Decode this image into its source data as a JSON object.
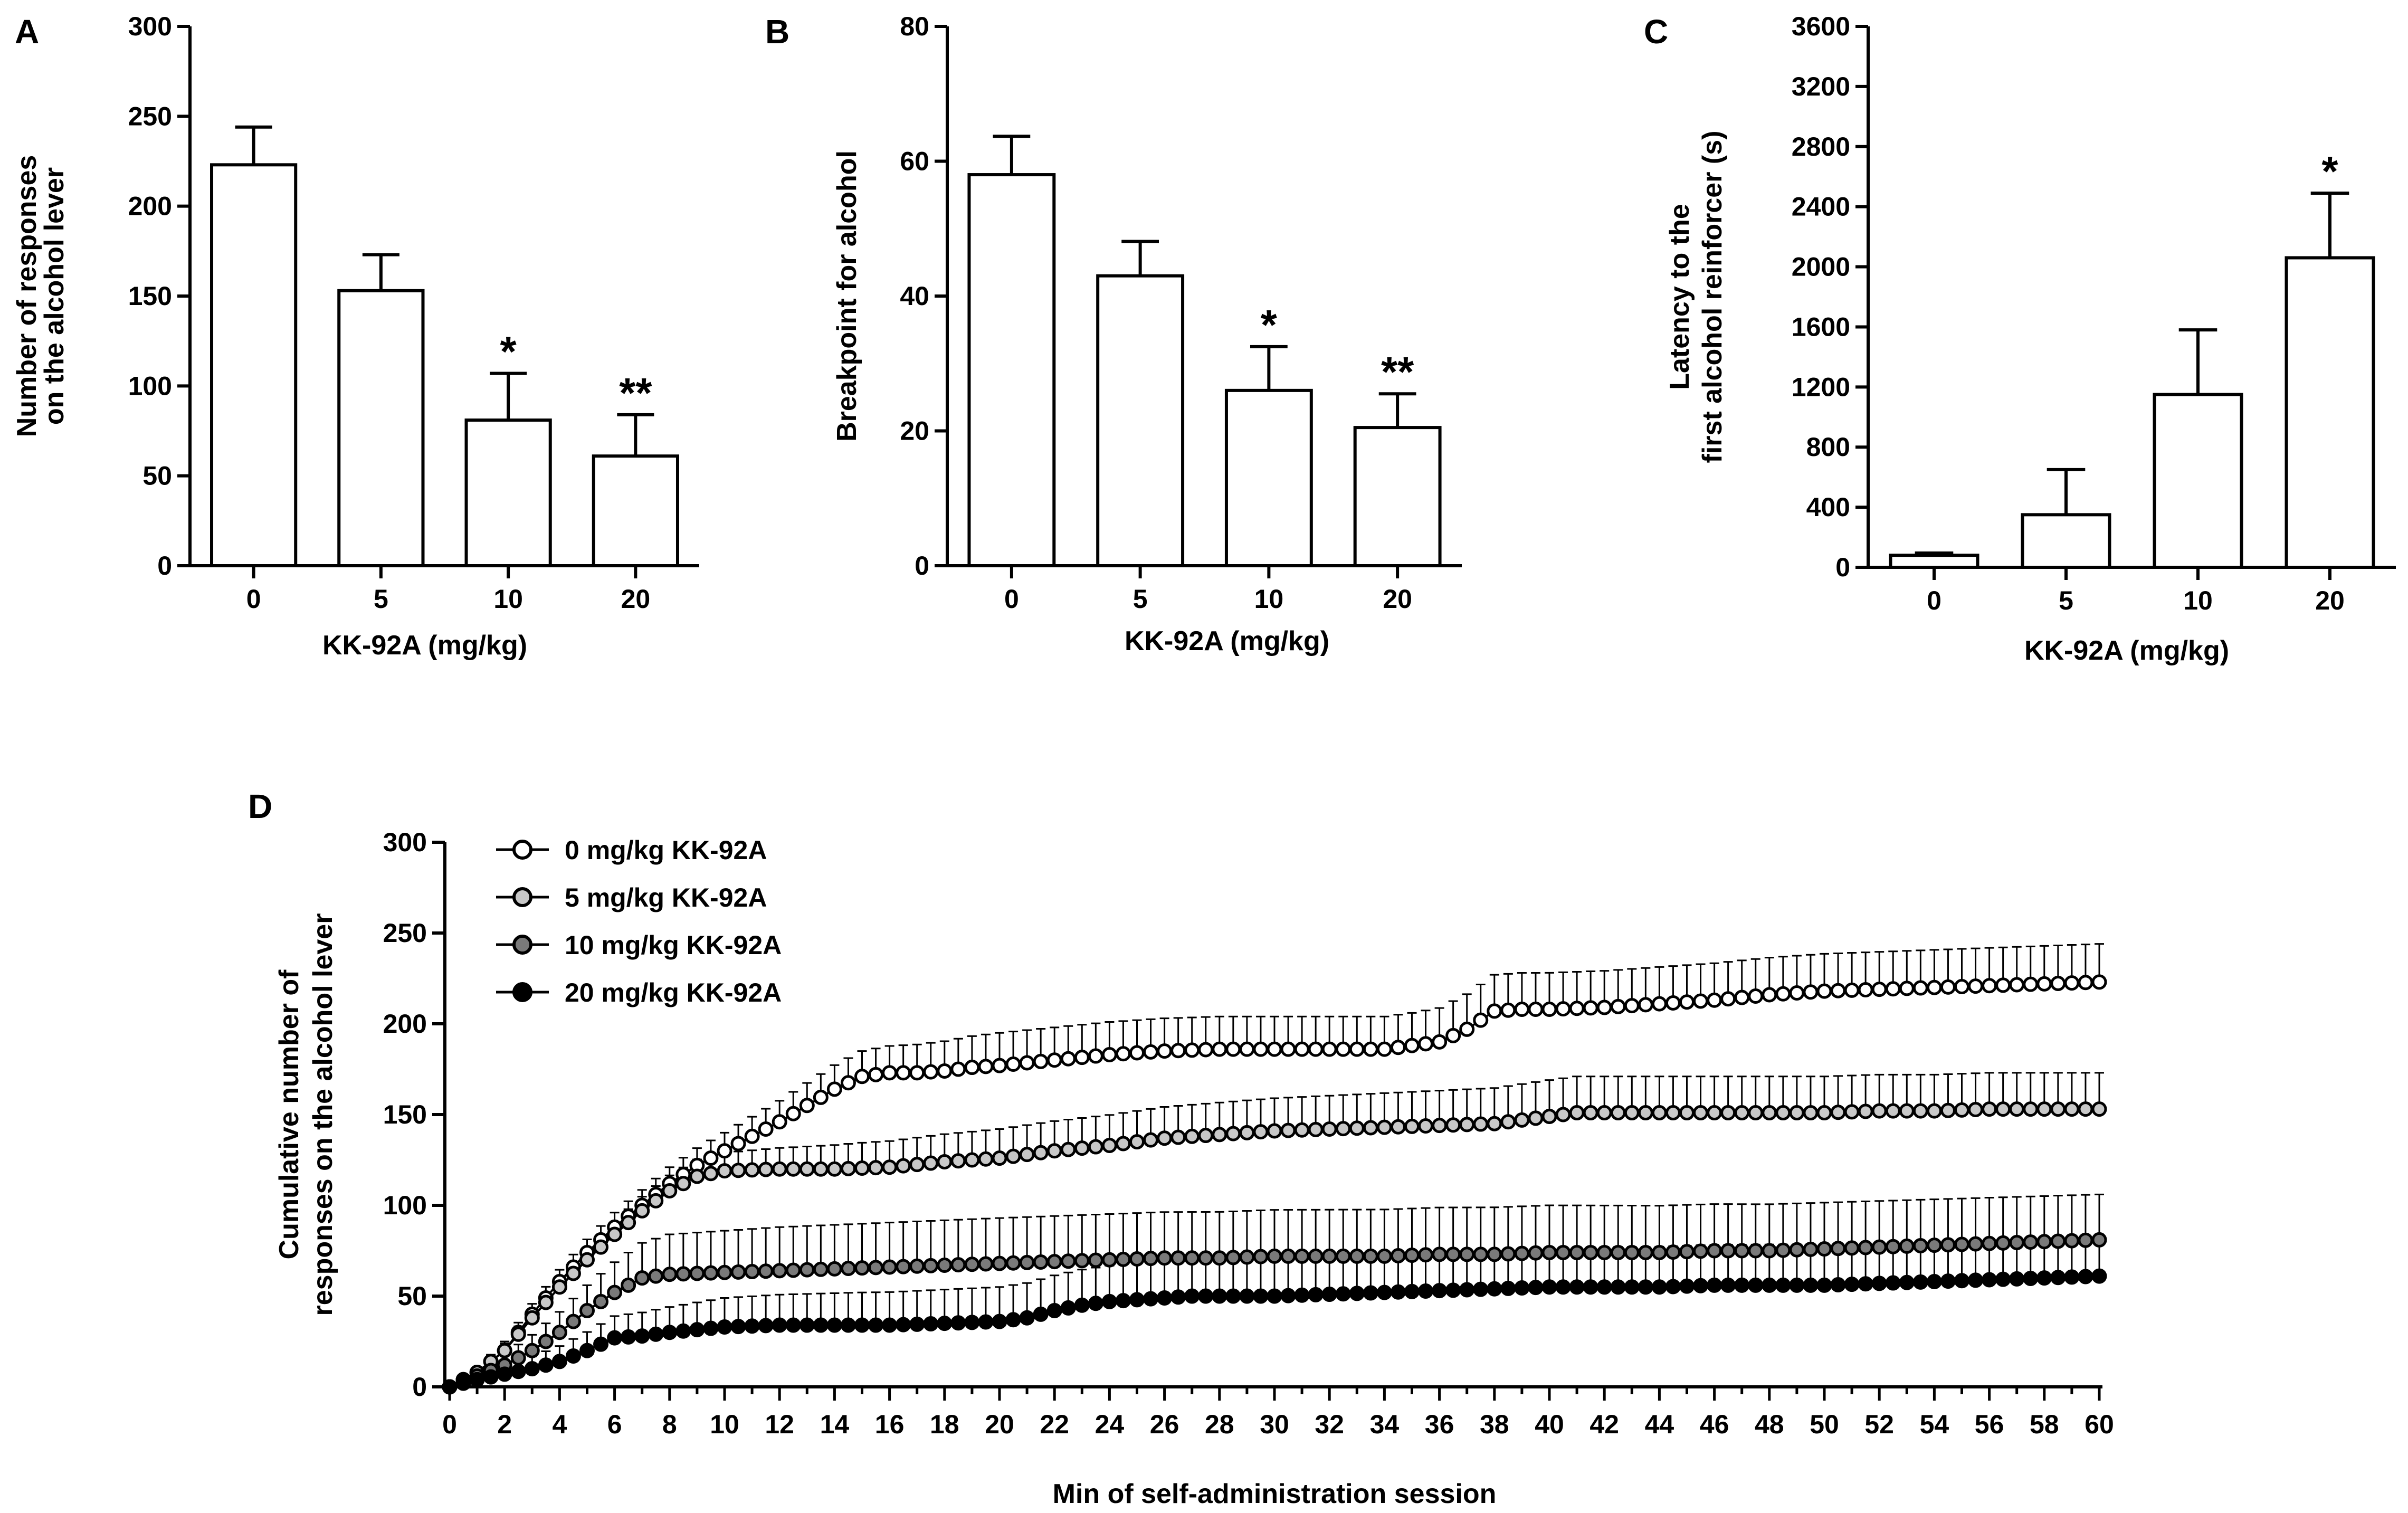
{
  "chart_data": [
    {
      "panel": "A",
      "type": "bar",
      "categories": [
        "0",
        "5",
        "10",
        "20"
      ],
      "values": [
        223,
        153,
        81,
        61
      ],
      "errors": [
        21,
        20,
        26,
        23
      ],
      "significance": [
        "",
        "",
        "*",
        "**"
      ],
      "xlabel": "KK-92A (mg/kg)",
      "ylabel_lines": [
        "Number of responses",
        "on the alcohol lever"
      ],
      "ylim": [
        0,
        300
      ],
      "yticks": [
        0,
        50,
        100,
        150,
        200,
        250,
        300
      ],
      "ytick_labels": [
        "0",
        "50",
        "100",
        "150",
        "200",
        "250",
        "300"
      ]
    },
    {
      "panel": "B",
      "type": "bar",
      "categories": [
        "0",
        "5",
        "10",
        "20"
      ],
      "values": [
        58,
        43,
        26,
        20.5
      ],
      "errors": [
        5.7,
        5.1,
        6.5,
        5
      ],
      "significance": [
        "",
        "",
        "*",
        "**"
      ],
      "xlabel": "KK-92A (mg/kg)",
      "ylabel_lines": [
        "Breakpoint for alcohol"
      ],
      "ylim": [
        0,
        80
      ],
      "yticks": [
        0,
        20,
        40,
        60,
        80
      ],
      "ytick_labels": [
        "0",
        "20",
        "40",
        "60",
        "80"
      ]
    },
    {
      "panel": "C",
      "type": "bar",
      "categories": [
        "0",
        "5",
        "10",
        "20"
      ],
      "values": [
        80,
        350,
        1150,
        2060
      ],
      "errors": [
        15,
        300,
        430,
        430
      ],
      "significance": [
        "",
        "",
        "",
        "*"
      ],
      "xlabel": "KK-92A (mg/kg)",
      "ylabel_lines": [
        "Latency to the",
        "first alcohol reinforcer (s)"
      ],
      "ylim": [
        0,
        3600
      ],
      "yticks": [
        0,
        400,
        800,
        1200,
        1600,
        2000,
        2400,
        2800,
        3200,
        3600
      ],
      "ytick_labels": [
        "0",
        "400",
        "800",
        "1200",
        "1600",
        "2000",
        "2400",
        "2800",
        "3200",
        "3600"
      ]
    },
    {
      "panel": "D",
      "type": "line",
      "xlabel": "Min of self-administration session",
      "ylabel_lines": [
        "Cumulative number of",
        "responses on the alcohol lever"
      ],
      "xlim": [
        0,
        60
      ],
      "ylim": [
        0,
        300
      ],
      "xticks": [
        0,
        2,
        4,
        6,
        8,
        10,
        12,
        14,
        16,
        18,
        20,
        22,
        24,
        26,
        28,
        30,
        32,
        34,
        36,
        38,
        40,
        42,
        44,
        46,
        48,
        50,
        52,
        54,
        56,
        58,
        60
      ],
      "xtick_labels": [
        "0",
        "2",
        "4",
        "6",
        "8",
        "10",
        "12",
        "14",
        "16",
        "18",
        "20",
        "22",
        "24",
        "26",
        "28",
        "30",
        "32",
        "34",
        "36",
        "38",
        "40",
        "42",
        "44",
        "46",
        "48",
        "50",
        "52",
        "54",
        "56",
        "58",
        "60"
      ],
      "yticks": [
        0,
        50,
        100,
        150,
        200,
        250,
        300
      ],
      "ytick_labels": [
        "0",
        "50",
        "100",
        "150",
        "200",
        "250",
        "300"
      ],
      "sample_interval_min": 0.5,
      "series": [
        {
          "name": "0 mg/kg KK-92A",
          "marker_fill": "#ffffff",
          "anchors_x": [
            0,
            1,
            2,
            3,
            4,
            5,
            6,
            7,
            8,
            9,
            10,
            11,
            12,
            13,
            14,
            15,
            16,
            17,
            18,
            19,
            20,
            22,
            24,
            26,
            28,
            30,
            32,
            34,
            36,
            37,
            38,
            39,
            40,
            42,
            44,
            46,
            48,
            50,
            52,
            54,
            56,
            58,
            60
          ],
          "anchors_y": [
            0,
            8,
            20,
            40,
            58,
            74,
            88,
            100,
            112,
            122,
            130,
            138,
            146,
            155,
            164,
            171,
            173,
            173,
            174,
            176,
            177,
            180,
            183,
            185,
            186,
            186,
            186,
            186,
            190,
            197,
            207,
            208,
            208,
            209,
            211,
            213,
            216,
            218,
            219,
            220,
            221,
            222,
            223
          ],
          "err_anchors_x": [
            0,
            2,
            6,
            10,
            15,
            20,
            25,
            35,
            38,
            60
          ],
          "err_anchors_y": [
            0,
            5,
            8,
            10,
            14,
            18,
            18,
            18,
            20,
            21
          ]
        },
        {
          "name": "5 mg/kg KK-92A",
          "marker_fill": "#c8c8c8",
          "anchors_x": [
            0,
            1,
            2,
            3,
            4,
            5,
            6,
            7,
            8,
            9,
            10,
            12,
            14,
            16,
            18,
            20,
            22,
            24,
            26,
            28,
            30,
            32,
            34,
            36,
            38,
            40,
            41,
            42,
            44,
            46,
            48,
            50,
            52,
            54,
            56,
            58,
            60
          ],
          "anchors_y": [
            0,
            8,
            20,
            38,
            55,
            70,
            84,
            97,
            108,
            116,
            119,
            120,
            120,
            121,
            124,
            126,
            130,
            133,
            137,
            139,
            141,
            142,
            143,
            144,
            145,
            149,
            151,
            151,
            151,
            151,
            151,
            151,
            152,
            152,
            153,
            153,
            153
          ],
          "err_anchors_x": [
            0,
            2,
            6,
            10,
            15,
            20,
            30,
            40,
            60
          ],
          "err_anchors_y": [
            0,
            4,
            7,
            10,
            14,
            16,
            18,
            20,
            20
          ]
        },
        {
          "name": "10 mg/kg KK-92A",
          "marker_fill": "#7a7a7a",
          "anchors_x": [
            0,
            1,
            2,
            3,
            4,
            5,
            6,
            7,
            8,
            10,
            12,
            14,
            16,
            18,
            20,
            22,
            24,
            26,
            28,
            30,
            32,
            34,
            36,
            38,
            40,
            42,
            44,
            46,
            48,
            50,
            52,
            54,
            56,
            58,
            60
          ],
          "anchors_y": [
            0,
            6,
            12,
            20,
            30,
            42,
            52,
            60,
            62,
            63,
            64,
            65,
            66,
            67,
            68,
            69,
            70,
            71,
            71,
            72,
            72,
            72,
            73,
            73,
            74,
            74,
            74,
            75,
            75,
            76,
            77,
            78,
            79,
            80,
            81
          ],
          "err_anchors_x": [
            0,
            2,
            5,
            8,
            12,
            20,
            40,
            60
          ],
          "err_anchors_y": [
            0,
            6,
            14,
            22,
            24,
            25,
            26,
            25
          ]
        },
        {
          "name": "20 mg/kg KK-92A",
          "marker_fill": "#000000",
          "anchors_x": [
            0,
            1,
            2,
            3,
            4,
            5,
            6,
            7,
            8,
            10,
            12,
            14,
            16,
            18,
            20,
            21,
            22,
            23,
            24,
            25,
            26,
            27,
            28,
            30,
            32,
            34,
            36,
            38,
            40,
            42,
            44,
            46,
            48,
            50,
            52,
            54,
            56,
            58,
            60
          ],
          "anchors_y": [
            0,
            4,
            7,
            10,
            14,
            20,
            27,
            28,
            30,
            33,
            34,
            34,
            34,
            35,
            36,
            38,
            42,
            45,
            47,
            48,
            49,
            50,
            50,
            50,
            51,
            52,
            53,
            54,
            55,
            55,
            55,
            56,
            56,
            56,
            57,
            58,
            59,
            60,
            61
          ],
          "err_anchors_x": [
            0,
            2,
            6,
            10,
            15,
            20,
            25,
            40,
            60
          ],
          "err_anchors_y": [
            0,
            5,
            12,
            16,
            18,
            19,
            20,
            22,
            23
          ]
        }
      ]
    }
  ]
}
